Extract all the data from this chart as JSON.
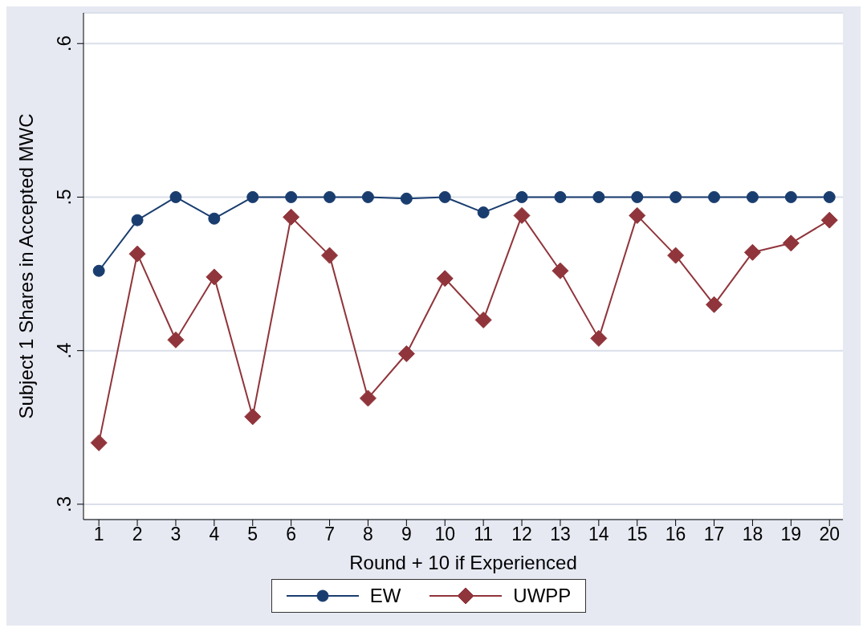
{
  "chart_data": {
    "type": "line",
    "xlabel": "Round + 10 if Experienced",
    "ylabel": "Subject 1 Shares in Accepted MWC",
    "x": [
      1,
      2,
      3,
      4,
      5,
      6,
      7,
      8,
      9,
      10,
      11,
      12,
      13,
      14,
      15,
      16,
      17,
      18,
      19,
      20
    ],
    "series": [
      {
        "name": "EW",
        "color": "#1a3d6f",
        "marker": "circle",
        "values": [
          0.452,
          0.485,
          0.5,
          0.486,
          0.5,
          0.5,
          0.5,
          0.5,
          0.499,
          0.5,
          0.49,
          0.5,
          0.5,
          0.5,
          0.5,
          0.5,
          0.5,
          0.5,
          0.5,
          0.5
        ]
      },
      {
        "name": "UWPP",
        "color": "#90353b",
        "marker": "diamond",
        "values": [
          0.34,
          0.463,
          0.407,
          0.448,
          0.357,
          0.487,
          0.462,
          0.369,
          0.398,
          0.447,
          0.42,
          0.488,
          0.452,
          0.408,
          0.488,
          0.462,
          0.43,
          0.464,
          0.47,
          0.485
        ]
      }
    ],
    "xlim": [
      0.6,
      20.35
    ],
    "xticks": [
      1,
      2,
      3,
      4,
      5,
      6,
      7,
      8,
      9,
      10,
      11,
      12,
      13,
      14,
      15,
      16,
      17,
      18,
      19,
      20
    ],
    "ylim": [
      0.29,
      0.62
    ],
    "yticks": [
      {
        "value": 0.3,
        "label": ".3"
      },
      {
        "value": 0.4,
        "label": ".4"
      },
      {
        "value": 0.5,
        "label": ".5"
      },
      {
        "value": 0.6,
        "label": ".6"
      }
    ],
    "grid": "y",
    "legend": "bottom",
    "line_style": "solid"
  }
}
